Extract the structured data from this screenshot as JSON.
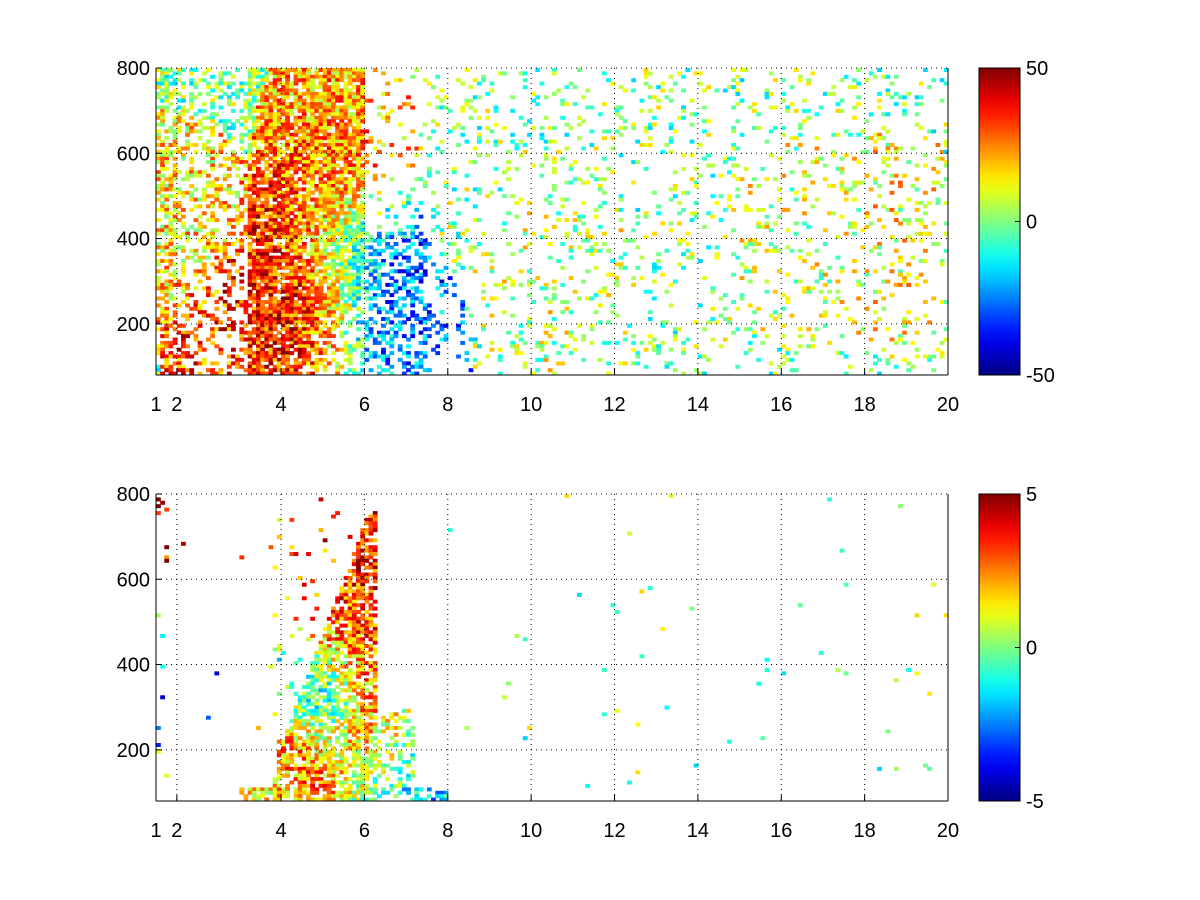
{
  "chart_data": [
    {
      "type": "heatmap",
      "title": "",
      "xlabel": "",
      "ylabel": "",
      "xlim": [
        1,
        20
      ],
      "ylim": [
        80,
        800
      ],
      "x_ticks": [
        1,
        2,
        4,
        6,
        8,
        10,
        12,
        14,
        16,
        18,
        20
      ],
      "x_tick_labels": [
        "1",
        "2",
        "4",
        "6",
        "8",
        "10",
        "12",
        "14",
        "16",
        "18",
        "20"
      ],
      "y_ticks": [
        200,
        400,
        600,
        800
      ],
      "y_tick_labels": [
        "200",
        "400",
        "600",
        "800"
      ],
      "grid": true,
      "colormap": "jet",
      "clim": [
        -50,
        50
      ],
      "colorbar_ticks": [
        -50,
        0,
        50
      ],
      "colorbar_tick_labels": [
        "-50",
        "0",
        "50"
      ],
      "features": [
        {
          "x": 1.3,
          "y": 450,
          "value": 15
        },
        {
          "x": 3.0,
          "y": 110,
          "value": 30
        },
        {
          "x": 3.7,
          "y": 180,
          "value": 35
        },
        {
          "x": 4.3,
          "y": 260,
          "value": 35
        },
        {
          "x": 5.0,
          "y": 380,
          "value": 40
        },
        {
          "x": 5.3,
          "y": 500,
          "value": 35
        },
        {
          "x": 5.3,
          "y": 650,
          "value": 20
        },
        {
          "x": 5.5,
          "y": 390,
          "value": -40
        },
        {
          "x": 6.3,
          "y": 190,
          "value": -30
        },
        {
          "x": 6.6,
          "y": 110,
          "value": -25
        },
        {
          "x": 5.3,
          "y": 170,
          "value": 25
        },
        {
          "x": 10.5,
          "y": 300,
          "value": 5
        },
        {
          "x": 16.5,
          "y": 400,
          "value": 8
        },
        {
          "x": 18.7,
          "y": 400,
          "value": 12
        }
      ]
    },
    {
      "type": "heatmap",
      "title": "",
      "xlabel": "",
      "ylabel": "",
      "xlim": [
        1,
        20
      ],
      "ylim": [
        80,
        800
      ],
      "x_ticks": [
        1,
        2,
        4,
        6,
        8,
        10,
        12,
        14,
        16,
        18,
        20
      ],
      "x_tick_labels": [
        "1",
        "2",
        "4",
        "6",
        "8",
        "10",
        "12",
        "14",
        "16",
        "18",
        "20"
      ],
      "y_ticks": [
        200,
        400,
        600,
        800
      ],
      "y_tick_labels": [
        "200",
        "400",
        "600",
        "800"
      ],
      "grid": true,
      "colormap": "jet",
      "clim": [
        -5,
        5
      ],
      "colorbar_ticks": [
        -5,
        0,
        5
      ],
      "colorbar_tick_labels": [
        "-5",
        "0",
        "5"
      ],
      "features": [
        {
          "x": 1.3,
          "y": 550,
          "value": 4.5
        },
        {
          "x": 1.5,
          "y": 450,
          "value": -4.5
        },
        {
          "x": 4.6,
          "y": 350,
          "value": -1.5
        },
        {
          "x": 5.0,
          "y": 500,
          "value": 2.5
        },
        {
          "x": 5.6,
          "y": 560,
          "value": 3.5
        },
        {
          "x": 6.5,
          "y": 230,
          "value": 4
        },
        {
          "x": 6.8,
          "y": 185,
          "value": -3
        },
        {
          "x": 4.0,
          "y": 200,
          "value": 3
        },
        {
          "x": 3.2,
          "y": 95,
          "value": 0.5
        }
      ]
    }
  ]
}
